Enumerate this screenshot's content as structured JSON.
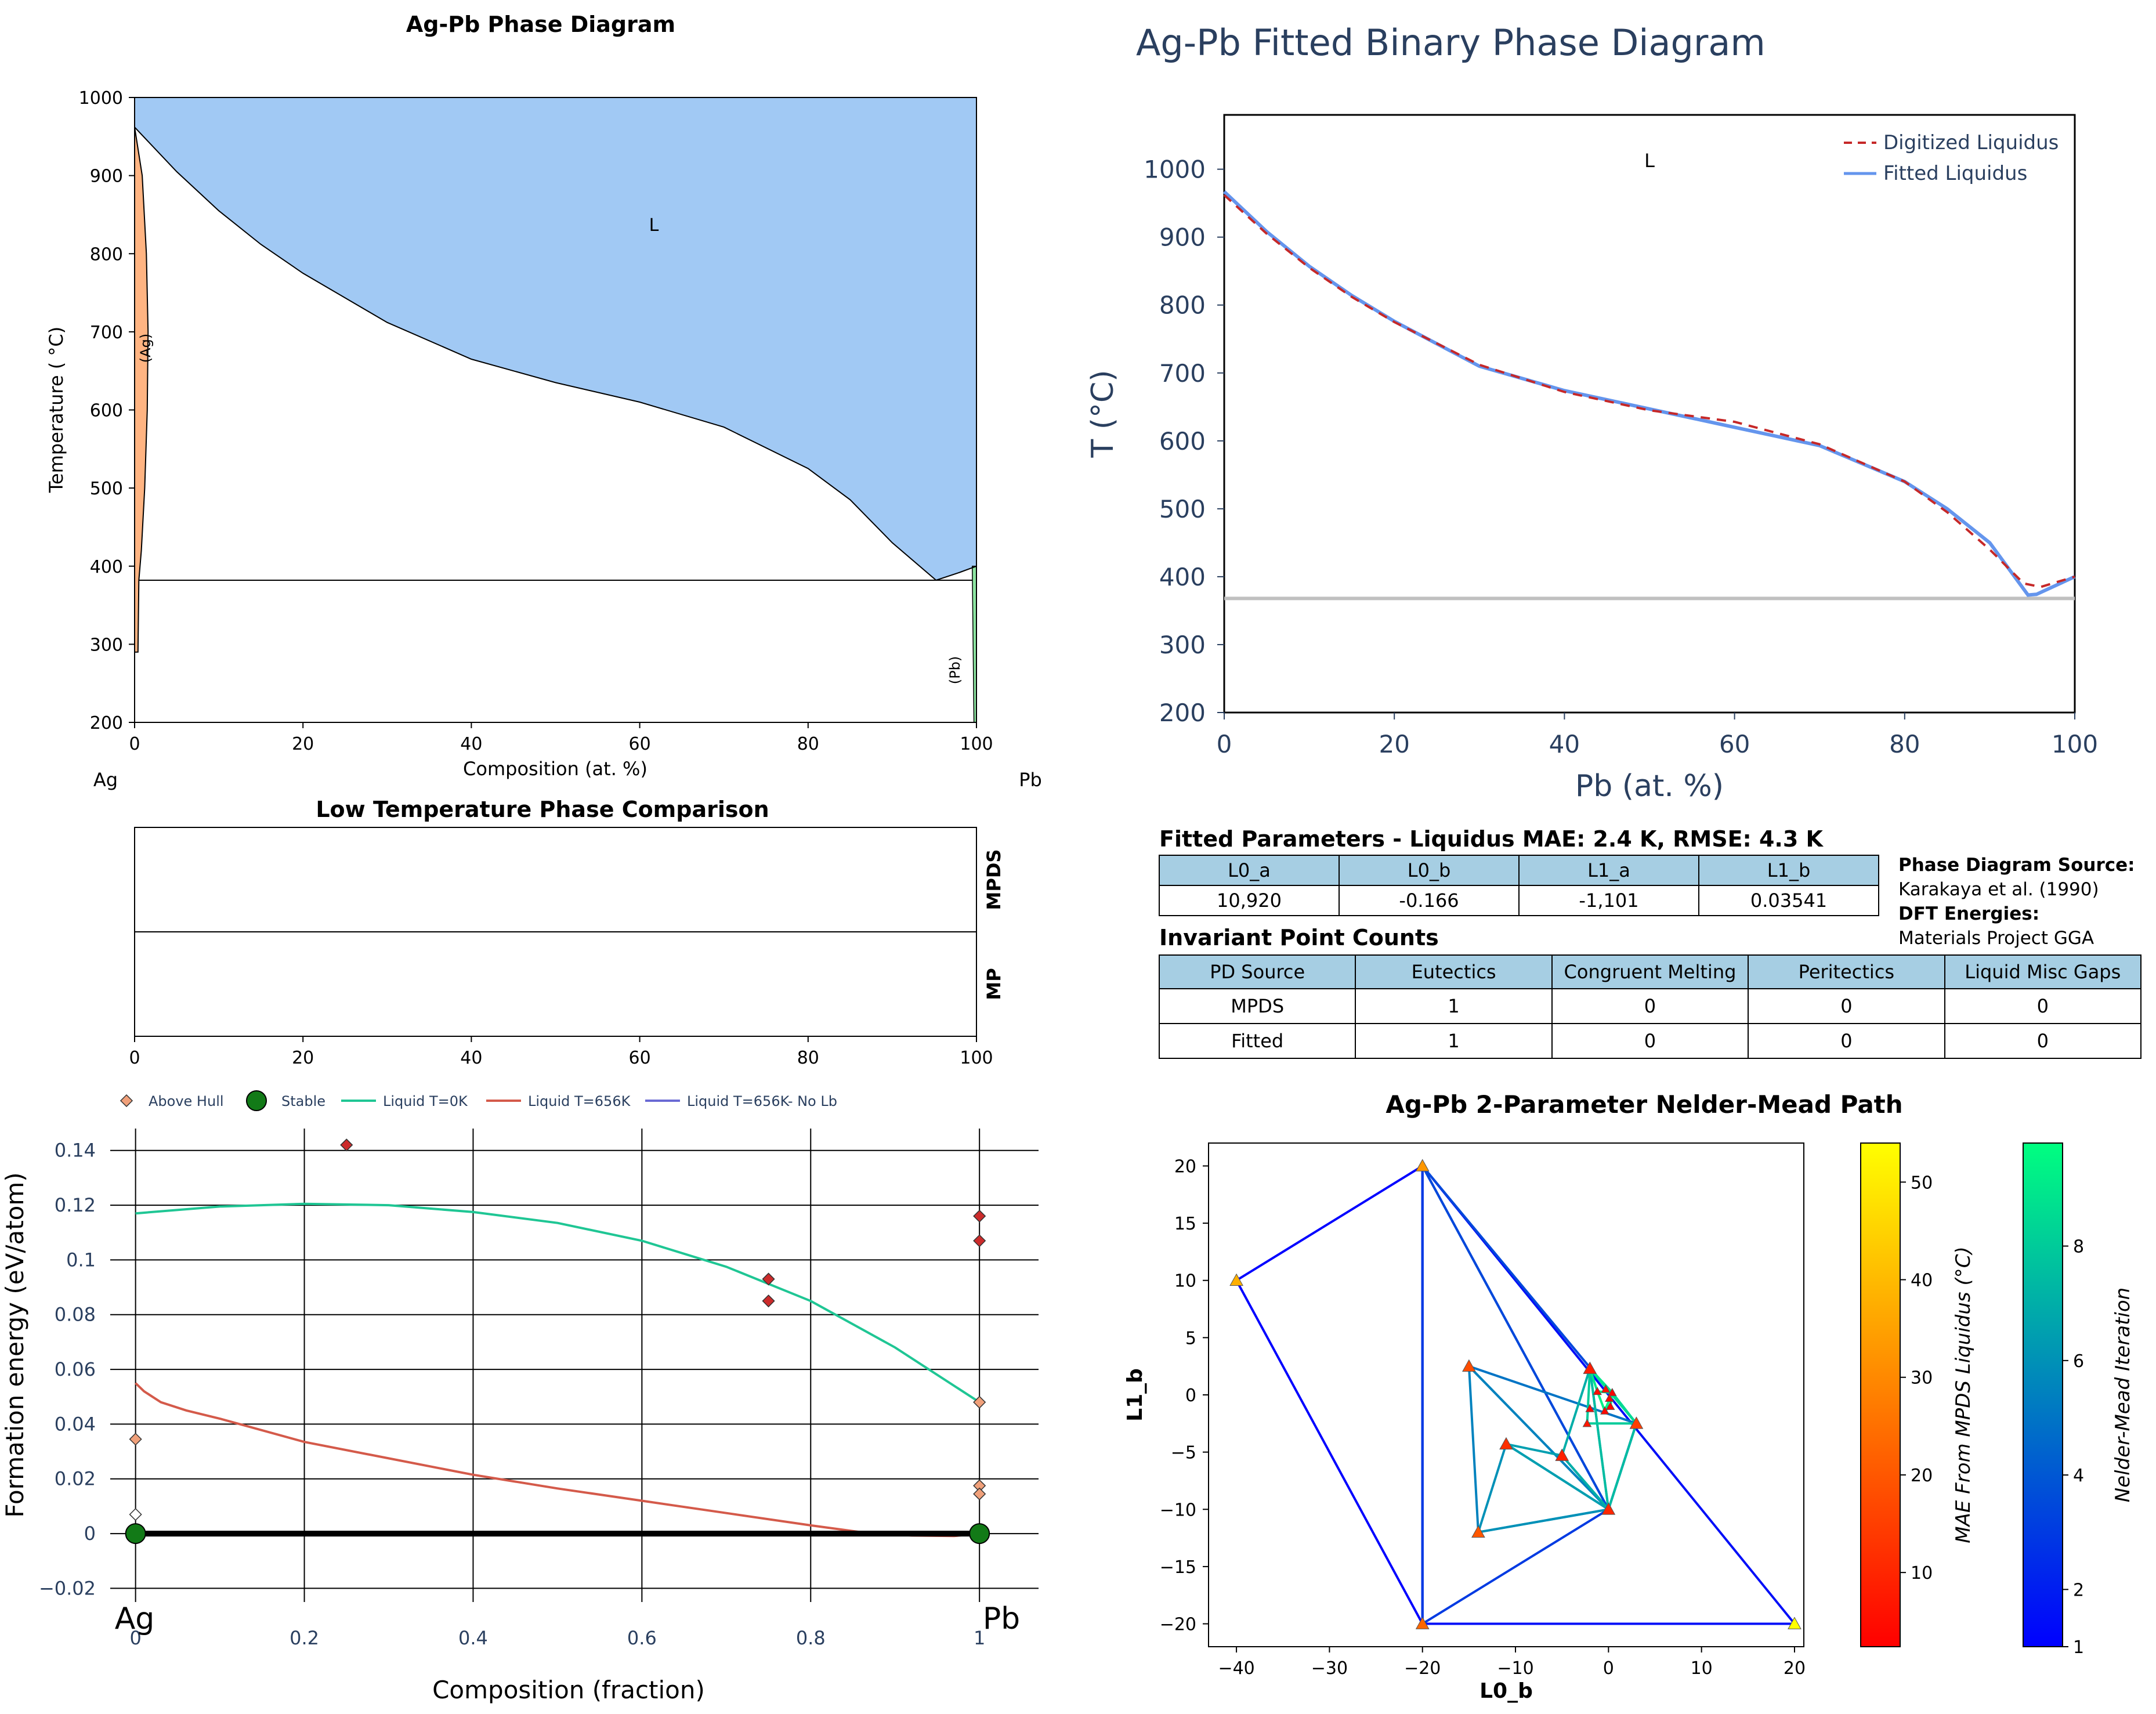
{
  "chart_data": [
    {
      "type": "area",
      "title": "Ag-Pb Phase Diagram",
      "xlabel": "Composition (at. %)",
      "ylabel": "Temperature ( °C)",
      "xlim": [
        0,
        100
      ],
      "ylim": [
        200,
        1000
      ],
      "xticks": [
        "0",
        "20",
        "40",
        "60",
        "80",
        "100"
      ],
      "yticks": [
        "200",
        "300",
        "400",
        "500",
        "600",
        "700",
        "800",
        "900",
        "1000"
      ],
      "end_labels": [
        "Ag",
        "Pb"
      ],
      "region_labels": {
        "liquid": "L",
        "ag_solid": "(Ag)",
        "pb_solid": "(Pb)"
      },
      "liquidus": {
        "x": [
          0,
          5,
          10,
          15,
          20,
          30,
          40,
          50,
          60,
          70,
          80,
          85,
          90,
          95.2,
          98,
          100
        ],
        "y": [
          962,
          905,
          855,
          812,
          775,
          712,
          665,
          635,
          610,
          578,
          525,
          485,
          430,
          382,
          392,
          400
        ]
      },
      "ag_solvus": {
        "x": [
          0,
          0.9,
          1.4,
          1.6,
          1.5,
          1.2,
          0.8,
          0.5,
          0.4
        ],
        "y": [
          962,
          900,
          800,
          700,
          600,
          500,
          420,
          382,
          290
        ]
      },
      "eutectic": {
        "y": 382,
        "x": [
          0.5,
          99.5
        ]
      },
      "colors": {
        "liquid": "#a1c9f4",
        "ag_solid": "#ffb482",
        "pb_solid": "#8de5a1"
      }
    },
    {
      "type": "table",
      "title": "Low Temperature Phase Comparison",
      "xlim": [
        0,
        100
      ],
      "xticks": [
        "0",
        "20",
        "40",
        "60",
        "80",
        "100"
      ],
      "rows": [
        "MPDS",
        "MP"
      ]
    },
    {
      "type": "scatter",
      "xlabel": "Composition (fraction)",
      "ylabel": "Formation energy (eV/atom)",
      "xlim": [
        -0.03,
        1.07
      ],
      "ylim": [
        -0.025,
        0.148
      ],
      "xticks": [
        "0",
        "0.2",
        "0.4",
        "0.6",
        "0.8",
        "1"
      ],
      "yticks": [
        "−0.02",
        "0",
        "0.02",
        "0.04",
        "0.06",
        "0.08",
        "0.1",
        "0.12",
        "0.14"
      ],
      "end_labels": [
        "Ag",
        "Pb"
      ],
      "legend": [
        "Above Hull",
        "Stable",
        "Liquid T=0K",
        "Liquid T=656K",
        "Liquid T=656K- No Lb"
      ],
      "series": [
        {
          "name": "Above Hull",
          "x": [
            0,
            0,
            0.25,
            0.75,
            0.75,
            1,
            1,
            1,
            1,
            1
          ],
          "y": [
            0.0345,
            0.007,
            0.142,
            0.093,
            0.085,
            0.116,
            0.107,
            0.048,
            0.0175,
            0.0145
          ]
        },
        {
          "name": "Stable",
          "x": [
            0,
            1
          ],
          "y": [
            0,
            0
          ]
        },
        {
          "name": "Liquid T=0K",
          "x": [
            0,
            0.1,
            0.2,
            0.3,
            0.4,
            0.5,
            0.6,
            0.7,
            0.8,
            0.9,
            1.0
          ],
          "y": [
            0.117,
            0.1195,
            0.1205,
            0.12,
            0.1175,
            0.1135,
            0.107,
            0.0975,
            0.085,
            0.068,
            0.048
          ]
        },
        {
          "name": "Liquid T=656K",
          "x": [
            0,
            0.01,
            0.03,
            0.06,
            0.1,
            0.2,
            0.3,
            0.4,
            0.5,
            0.6,
            0.7,
            0.8,
            0.86,
            0.92,
            0.97,
            1.0
          ],
          "y": [
            0.055,
            0.052,
            0.048,
            0.045,
            0.042,
            0.0335,
            0.0275,
            0.0215,
            0.0165,
            0.012,
            0.0075,
            0.003,
            0.0005,
            -0.0007,
            -0.0009,
            0.0
          ]
        },
        {
          "name": "Liquid T=656K- No Lb",
          "x": [],
          "y": []
        }
      ],
      "hull": {
        "x": [
          0,
          1
        ],
        "y": [
          0,
          0
        ]
      },
      "colors": {
        "above_hull": "#f0a07a",
        "stable": "#127a17",
        "liquid_0k": "#1fc694",
        "liquid_656k": "#d45a4a",
        "liquid_nolb": "#6a6ad4"
      }
    },
    {
      "type": "line",
      "title": "Ag-Pb Fitted Binary Phase Diagram",
      "xlabel": "Pb (at. %)",
      "ylabel": "T (°C)",
      "xlim": [
        0,
        100
      ],
      "ylim": [
        200,
        1080
      ],
      "xticks": [
        "0",
        "20",
        "40",
        "60",
        "80",
        "100"
      ],
      "yticks": [
        "200",
        "300",
        "400",
        "500",
        "600",
        "700",
        "800",
        "900",
        "1000"
      ],
      "region_label": "L",
      "series": [
        {
          "name": "Digitized Liquidus",
          "x": [
            0,
            5,
            10,
            15,
            20,
            30,
            40,
            50,
            60,
            70,
            80,
            85,
            90,
            94,
            96,
            100
          ],
          "y": [
            962,
            905,
            855,
            812,
            775,
            712,
            672,
            645,
            628,
            595,
            540,
            495,
            440,
            390,
            385,
            400
          ]
        },
        {
          "name": "Fitted Liquidus",
          "x": [
            0,
            5,
            10,
            15,
            20,
            30,
            40,
            50,
            60,
            70,
            80,
            85,
            90,
            94.5,
            95.5,
            100
          ],
          "y": [
            967,
            908,
            857,
            814,
            776,
            710,
            674,
            647,
            620,
            593,
            540,
            500,
            450,
            373,
            374,
            400
          ]
        }
      ],
      "eutectic_line": {
        "y": 368
      },
      "colors": {
        "digitized": "#c62828",
        "fitted": "#6495ed",
        "eutectic": "#c0c0c0",
        "text": "#2a3f5f"
      }
    },
    {
      "type": "table",
      "title": "Fitted Parameters - Liquidus MAE: 2.4 K, RMSE: 4.3 K",
      "columns": [
        "L0_a",
        "L0_b",
        "L1_a",
        "L1_b"
      ],
      "rows": [
        [
          "10,920",
          "-0.166",
          "-1,101",
          "0.03541"
        ]
      ]
    },
    {
      "type": "table",
      "title": "Invariant Point Counts",
      "columns": [
        "PD Source",
        "Eutectics",
        "Congruent Melting",
        "Peritectics",
        "Liquid Misc Gaps"
      ],
      "rows": [
        [
          "MPDS",
          "1",
          "0",
          "0",
          "0"
        ],
        [
          "Fitted",
          "1",
          "0",
          "0",
          "0"
        ]
      ]
    },
    {
      "type": "scatter",
      "title": "Ag-Pb 2-Parameter Nelder-Mead Path",
      "xlabel": "L0_b",
      "ylabel": "L1_b",
      "xlim": [
        -43,
        21
      ],
      "ylim": [
        -22,
        22
      ],
      "xticks": [
        "−40",
        "−30",
        "−20",
        "−10",
        "0",
        "10",
        "20"
      ],
      "yticks": [
        "−20",
        "−15",
        "−10",
        "−5",
        "0",
        "5",
        "10",
        "15",
        "20"
      ],
      "colorbars": [
        {
          "label": "MAE From MPDS Liquidus (°C)",
          "range": [
            2.4,
            54
          ],
          "ticks": [
            "10",
            "20",
            "30",
            "40",
            "50"
          ]
        },
        {
          "label": "Nelder-Mead Iteration",
          "range": [
            1,
            9.8
          ],
          "ticks": [
            "1",
            "2",
            "4",
            "6",
            "8"
          ]
        }
      ],
      "points": {
        "x": [
          -40,
          -20,
          -20,
          20,
          0,
          3,
          -2,
          -15,
          -14,
          -11,
          -5,
          -2.3,
          -1.2,
          -0.3,
          -0.4,
          0.2,
          -2,
          0.4,
          0.1
        ],
        "y": [
          10,
          20,
          -20,
          -20,
          -10,
          -2.5,
          2.3,
          2.5,
          -12,
          -4.3,
          -5.3,
          -2.5,
          0.3,
          0.5,
          -1.4,
          -1.0,
          -1.2,
          0.2,
          -0.3
        ],
        "mae": [
          38,
          33,
          23,
          54,
          10,
          15,
          8,
          18,
          20,
          12,
          9,
          7,
          5,
          5,
          4,
          4,
          4,
          3,
          3
        ]
      },
      "simplices": [
        {
          "iter": 1,
          "v": [
            [
              -40,
              10
            ],
            [
              -20,
              20
            ],
            [
              -20,
              -20
            ]
          ]
        },
        {
          "iter": 1.5,
          "v": [
            [
              -20,
              20
            ],
            [
              -20,
              -20
            ],
            [
              20,
              -20
            ]
          ]
        },
        {
          "iter": 3,
          "v": [
            [
              -20,
              20
            ],
            [
              -20,
              -20
            ],
            [
              0,
              -10
            ]
          ]
        },
        {
          "iter": 3.5,
          "v": [
            [
              -20,
              20
            ],
            [
              0,
              -10
            ],
            [
              3,
              -2.5
            ]
          ]
        },
        {
          "iter": 5,
          "v": [
            [
              -15,
              2.5
            ],
            [
              0,
              -10
            ],
            [
              3,
              -2.5
            ]
          ]
        },
        {
          "iter": 5.5,
          "v": [
            [
              -15,
              2.5
            ],
            [
              0,
              -10
            ],
            [
              -14,
              -12
            ]
          ]
        },
        {
          "iter": 6,
          "v": [
            [
              -14,
              -12
            ],
            [
              0,
              -10
            ],
            [
              -11,
              -4.3
            ]
          ]
        },
        {
          "iter": 6.5,
          "v": [
            [
              -11,
              -4.3
            ],
            [
              0,
              -10
            ],
            [
              -5,
              -5.3
            ]
          ]
        },
        {
          "iter": 7,
          "v": [
            [
              -5,
              -5.3
            ],
            [
              0,
              -10
            ],
            [
              -2,
              2.3
            ]
          ]
        },
        {
          "iter": 7.5,
          "v": [
            [
              -2,
              2.3
            ],
            [
              0,
              -10
            ],
            [
              3,
              -2.5
            ]
          ]
        },
        {
          "iter": 8,
          "v": [
            [
              -2,
              2.3
            ],
            [
              3,
              -2.5
            ],
            [
              -2.3,
              -2.5
            ]
          ]
        },
        {
          "iter": 8.5,
          "v": [
            [
              -2,
              2.3
            ],
            [
              3,
              -2.5
            ],
            [
              0.4,
              0.2
            ]
          ]
        },
        {
          "iter": 9,
          "v": [
            [
              -2,
              2.3
            ],
            [
              0.4,
              0.2
            ],
            [
              -1.2,
              0.3
            ]
          ]
        },
        {
          "iter": 9.3,
          "v": [
            [
              -1.2,
              0.3
            ],
            [
              0.4,
              0.2
            ],
            [
              -0.4,
              -1.4
            ]
          ]
        },
        {
          "iter": 9.6,
          "v": [
            [
              -0.4,
              -1.4
            ],
            [
              0.4,
              0.2
            ],
            [
              0.2,
              -1.0
            ]
          ]
        }
      ]
    }
  ],
  "sources": {
    "pd_label": "Phase Diagram Source:",
    "pd_value": "Karakaya et al. (1990)",
    "dft_label": "DFT Energies:",
    "dft_value": "Materials Project GGA"
  }
}
